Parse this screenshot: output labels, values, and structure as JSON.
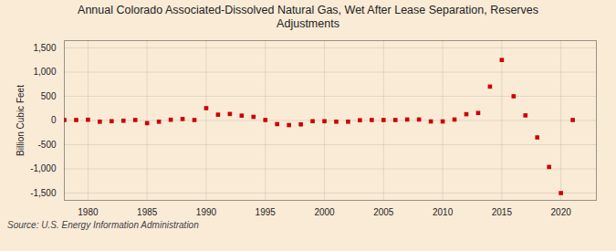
{
  "chart_data": {
    "type": "scatter",
    "title": "Annual Colorado Associated-Dissolved Natural Gas, Wet After Lease Separation, Reserves\nAdjustments",
    "ylabel": "Billion Cubic Feet",
    "annotation": "Source: U.S. Energy Information Administration",
    "color": "#cc0000",
    "marker": "square",
    "grid": true,
    "xlim": [
      1978,
      2023
    ],
    "ylim": [
      -1650,
      1650
    ],
    "xticks": [
      1980,
      1985,
      1990,
      1995,
      2000,
      2005,
      2010,
      2015,
      2020
    ],
    "yticks": [
      {
        "value": -1500,
        "label": "-1,500"
      },
      {
        "value": -1000,
        "label": "-1,000"
      },
      -500,
      0,
      500,
      {
        "value": 1000,
        "label": "1,000"
      },
      {
        "value": 1500,
        "label": "1,500"
      }
    ],
    "x": [
      1978,
      1979,
      1980,
      1981,
      1982,
      1983,
      1984,
      1985,
      1986,
      1987,
      1988,
      1989,
      1990,
      1991,
      1992,
      1993,
      1994,
      1995,
      1996,
      1997,
      1998,
      1999,
      2000,
      2001,
      2002,
      2003,
      2004,
      2005,
      2006,
      2007,
      2008,
      2009,
      2010,
      2011,
      2012,
      2013,
      2014,
      2015,
      2016,
      2017,
      2018,
      2019,
      2020,
      2021
    ],
    "values": [
      10,
      10,
      15,
      -25,
      -15,
      -5,
      10,
      -55,
      -25,
      15,
      30,
      10,
      255,
      120,
      135,
      100,
      75,
      10,
      -75,
      -95,
      -80,
      -15,
      -15,
      -25,
      -25,
      5,
      10,
      10,
      10,
      20,
      20,
      -20,
      -20,
      20,
      130,
      155,
      700,
      1250,
      500,
      105,
      -350,
      -960,
      -1500,
      10
    ]
  }
}
